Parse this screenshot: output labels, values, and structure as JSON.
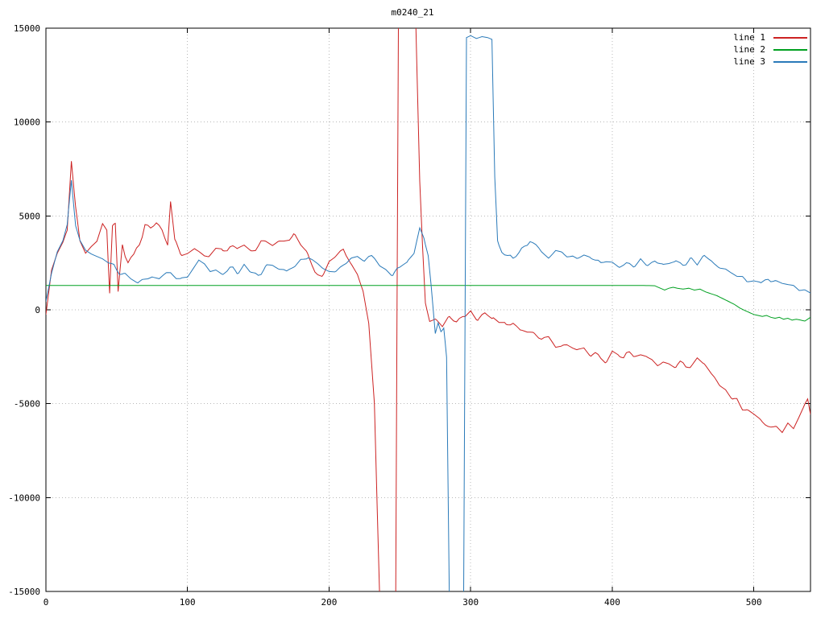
{
  "chart_data": {
    "type": "line",
    "title": "m0240_21",
    "xlabel": "",
    "ylabel": "",
    "xlim": [
      0,
      540
    ],
    "ylim": [
      -15000,
      15000
    ],
    "xticks": [
      0,
      100,
      200,
      300,
      400,
      500
    ],
    "yticks": [
      -15000,
      -10000,
      -5000,
      0,
      5000,
      10000,
      15000
    ],
    "grid": true,
    "legend_position": "top-right",
    "series": [
      {
        "name": "line 1",
        "color": "#cc2222",
        "jitter": 220,
        "points": [
          [
            0,
            -300
          ],
          [
            4,
            2200
          ],
          [
            8,
            2900
          ],
          [
            12,
            3600
          ],
          [
            15,
            4400
          ],
          [
            18,
            8100
          ],
          [
            21,
            5600
          ],
          [
            24,
            3600
          ],
          [
            28,
            3100
          ],
          [
            32,
            3400
          ],
          [
            36,
            3600
          ],
          [
            40,
            4600
          ],
          [
            43,
            4300
          ],
          [
            45,
            900
          ],
          [
            47,
            4300
          ],
          [
            49,
            4400
          ],
          [
            51,
            800
          ],
          [
            54,
            3500
          ],
          [
            58,
            2600
          ],
          [
            62,
            2900
          ],
          [
            66,
            3500
          ],
          [
            70,
            4600
          ],
          [
            74,
            4300
          ],
          [
            78,
            4500
          ],
          [
            82,
            4100
          ],
          [
            86,
            3300
          ],
          [
            88,
            5600
          ],
          [
            91,
            3600
          ],
          [
            95,
            3000
          ],
          [
            100,
            2800
          ],
          [
            105,
            3100
          ],
          [
            110,
            3000
          ],
          [
            115,
            2900
          ],
          [
            120,
            3300
          ],
          [
            125,
            3000
          ],
          [
            130,
            3300
          ],
          [
            135,
            3200
          ],
          [
            140,
            3500
          ],
          [
            145,
            3300
          ],
          [
            150,
            3400
          ],
          [
            155,
            3600
          ],
          [
            160,
            3500
          ],
          [
            165,
            3700
          ],
          [
            170,
            3800
          ],
          [
            175,
            3900
          ],
          [
            180,
            3400
          ],
          [
            185,
            2800
          ],
          [
            190,
            2100
          ],
          [
            195,
            1900
          ],
          [
            200,
            2400
          ],
          [
            205,
            2800
          ],
          [
            210,
            3200
          ],
          [
            215,
            2500
          ],
          [
            220,
            1900
          ],
          [
            224,
            900
          ],
          [
            228,
            -900
          ],
          [
            232,
            -5000
          ],
          [
            236,
            -16000
          ],
          [
            247,
            -16000
          ],
          [
            249,
            16000
          ],
          [
            261,
            16000
          ],
          [
            264,
            7000
          ],
          [
            266,
            3500
          ],
          [
            268,
            500
          ],
          [
            271,
            -500
          ],
          [
            275,
            -400
          ],
          [
            280,
            -700
          ],
          [
            285,
            -400
          ],
          [
            290,
            -600
          ],
          [
            295,
            -200
          ],
          [
            300,
            -150
          ],
          [
            305,
            -500
          ],
          [
            310,
            -300
          ],
          [
            315,
            -650
          ],
          [
            320,
            -500
          ],
          [
            325,
            -850
          ],
          [
            330,
            -650
          ],
          [
            335,
            -1000
          ],
          [
            340,
            -1050
          ],
          [
            345,
            -1250
          ],
          [
            350,
            -1550
          ],
          [
            355,
            -1450
          ],
          [
            360,
            -1950
          ],
          [
            365,
            -1850
          ],
          [
            370,
            -2050
          ],
          [
            375,
            -2250
          ],
          [
            380,
            -2150
          ],
          [
            385,
            -2500
          ],
          [
            390,
            -2450
          ],
          [
            395,
            -2700
          ],
          [
            400,
            -2400
          ],
          [
            405,
            -2600
          ],
          [
            410,
            -2300
          ],
          [
            415,
            -2550
          ],
          [
            420,
            -2450
          ],
          [
            425,
            -2650
          ],
          [
            430,
            -2750
          ],
          [
            435,
            -2850
          ],
          [
            440,
            -2800
          ],
          [
            445,
            -2950
          ],
          [
            450,
            -2850
          ],
          [
            455,
            -3100
          ],
          [
            460,
            -2750
          ],
          [
            465,
            -2950
          ],
          [
            470,
            -3450
          ],
          [
            475,
            -3850
          ],
          [
            480,
            -4250
          ],
          [
            485,
            -4700
          ],
          [
            490,
            -5050
          ],
          [
            495,
            -5350
          ],
          [
            500,
            -5650
          ],
          [
            505,
            -5950
          ],
          [
            510,
            -6150
          ],
          [
            515,
            -6250
          ],
          [
            520,
            -6350
          ],
          [
            524,
            -5950
          ],
          [
            528,
            -6150
          ],
          [
            532,
            -5900
          ],
          [
            535,
            -5300
          ],
          [
            538,
            -4700
          ],
          [
            540,
            -5400
          ]
        ]
      },
      {
        "name": "line 2",
        "color": "#00a020",
        "jitter": 0,
        "points": [
          [
            0,
            1300
          ],
          [
            100,
            1300
          ],
          [
            200,
            1300
          ],
          [
            300,
            1300
          ],
          [
            400,
            1300
          ],
          [
            420,
            1300
          ],
          [
            430,
            1280
          ],
          [
            434,
            1150
          ],
          [
            437,
            1050
          ],
          [
            440,
            1150
          ],
          [
            443,
            1200
          ],
          [
            446,
            1150
          ],
          [
            450,
            1100
          ],
          [
            454,
            1150
          ],
          [
            458,
            1050
          ],
          [
            462,
            1100
          ],
          [
            466,
            950
          ],
          [
            470,
            850
          ],
          [
            474,
            750
          ],
          [
            478,
            600
          ],
          [
            482,
            450
          ],
          [
            486,
            300
          ],
          [
            490,
            100
          ],
          [
            494,
            -50
          ],
          [
            497,
            -150
          ],
          [
            500,
            -250
          ],
          [
            503,
            -300
          ],
          [
            506,
            -350
          ],
          [
            509,
            -300
          ],
          [
            512,
            -400
          ],
          [
            515,
            -450
          ],
          [
            518,
            -400
          ],
          [
            521,
            -500
          ],
          [
            524,
            -450
          ],
          [
            527,
            -550
          ],
          [
            530,
            -500
          ],
          [
            533,
            -550
          ],
          [
            536,
            -600
          ],
          [
            538,
            -500
          ],
          [
            540,
            -400
          ]
        ]
      },
      {
        "name": "line 3",
        "color": "#2a7ab9",
        "jitter": 170,
        "points": [
          [
            0,
            400
          ],
          [
            4,
            2000
          ],
          [
            8,
            3000
          ],
          [
            12,
            3800
          ],
          [
            15,
            4600
          ],
          [
            18,
            7000
          ],
          [
            21,
            4600
          ],
          [
            24,
            3800
          ],
          [
            28,
            3300
          ],
          [
            32,
            3000
          ],
          [
            36,
            2900
          ],
          [
            40,
            2800
          ],
          [
            45,
            2500
          ],
          [
            50,
            2100
          ],
          [
            55,
            1900
          ],
          [
            60,
            1700
          ],
          [
            65,
            1500
          ],
          [
            70,
            1650
          ],
          [
            75,
            1800
          ],
          [
            80,
            1700
          ],
          [
            85,
            1900
          ],
          [
            90,
            1750
          ],
          [
            95,
            1600
          ],
          [
            100,
            1700
          ],
          [
            104,
            2300
          ],
          [
            108,
            2600
          ],
          [
            112,
            2400
          ],
          [
            116,
            2200
          ],
          [
            120,
            2050
          ],
          [
            125,
            1900
          ],
          [
            130,
            2200
          ],
          [
            135,
            2000
          ],
          [
            140,
            2300
          ],
          [
            145,
            2100
          ],
          [
            150,
            1950
          ],
          [
            155,
            2200
          ],
          [
            160,
            2400
          ],
          [
            165,
            2200
          ],
          [
            170,
            2050
          ],
          [
            175,
            2300
          ],
          [
            180,
            2600
          ],
          [
            185,
            2800
          ],
          [
            190,
            2500
          ],
          [
            195,
            2200
          ],
          [
            200,
            1950
          ],
          [
            205,
            2100
          ],
          [
            210,
            2400
          ],
          [
            215,
            2650
          ],
          [
            220,
            2850
          ],
          [
            225,
            2600
          ],
          [
            230,
            2800
          ],
          [
            235,
            2500
          ],
          [
            240,
            2200
          ],
          [
            245,
            1950
          ],
          [
            250,
            2150
          ],
          [
            255,
            2450
          ],
          [
            260,
            3100
          ],
          [
            264,
            4300
          ],
          [
            267,
            3800
          ],
          [
            270,
            2800
          ],
          [
            272,
            1200
          ],
          [
            275,
            -1300
          ],
          [
            277,
            -700
          ],
          [
            279,
            -1100
          ],
          [
            281,
            -900
          ],
          [
            283,
            -2500
          ],
          [
            285,
            -16000
          ],
          [
            295,
            -16000
          ],
          [
            297,
            14500
          ],
          [
            300,
            14600
          ],
          [
            304,
            14450
          ],
          [
            308,
            14550
          ],
          [
            312,
            14500
          ],
          [
            315,
            14400
          ],
          [
            317,
            7000
          ],
          [
            319,
            3800
          ],
          [
            322,
            3200
          ],
          [
            326,
            2900
          ],
          [
            330,
            2700
          ],
          [
            334,
            3000
          ],
          [
            338,
            3400
          ],
          [
            342,
            3700
          ],
          [
            346,
            3500
          ],
          [
            350,
            3150
          ],
          [
            355,
            2900
          ],
          [
            360,
            3300
          ],
          [
            365,
            3100
          ],
          [
            370,
            2900
          ],
          [
            375,
            2750
          ],
          [
            380,
            2850
          ],
          [
            385,
            2650
          ],
          [
            390,
            2750
          ],
          [
            395,
            2550
          ],
          [
            400,
            2450
          ],
          [
            405,
            2250
          ],
          [
            410,
            2500
          ],
          [
            415,
            2350
          ],
          [
            420,
            2600
          ],
          [
            425,
            2450
          ],
          [
            430,
            2700
          ],
          [
            435,
            2550
          ],
          [
            440,
            2350
          ],
          [
            445,
            2600
          ],
          [
            450,
            2450
          ],
          [
            455,
            2700
          ],
          [
            460,
            2550
          ],
          [
            465,
            2850
          ],
          [
            470,
            2650
          ],
          [
            475,
            2350
          ],
          [
            480,
            2150
          ],
          [
            485,
            1950
          ],
          [
            490,
            1750
          ],
          [
            495,
            1550
          ],
          [
            500,
            1650
          ],
          [
            505,
            1450
          ],
          [
            510,
            1700
          ],
          [
            515,
            1550
          ],
          [
            520,
            1350
          ],
          [
            525,
            1250
          ],
          [
            530,
            1150
          ],
          [
            535,
            1050
          ],
          [
            540,
            950
          ]
        ]
      }
    ]
  }
}
